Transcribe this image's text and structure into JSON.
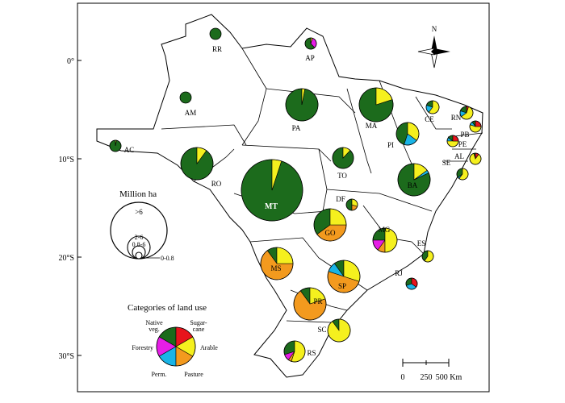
{
  "map": {
    "lat_labels": [
      "0°",
      "10°S",
      "20°S",
      "30°S"
    ],
    "north_label": "N",
    "scale_bar": {
      "labels": [
        "0",
        "250",
        "500 Km"
      ]
    },
    "size_legend": {
      "title": "Million ha",
      "classes": [
        ">6",
        "2-6",
        "0.8-6",
        "0-0.8"
      ]
    },
    "category_legend": {
      "title": "Categories of land use",
      "labels": [
        "Native veg.",
        "Sugar-cane",
        "Arable",
        "Pasture",
        "Perm.",
        "Forestry"
      ]
    },
    "colors": {
      "native_veg": "#1c6b1c",
      "sugarcane": "#e8141c",
      "arable": "#f5f01e",
      "pasture": "#f39a1e",
      "perm": "#19b4e6",
      "forestry": "#e61ee6"
    },
    "states": [
      {
        "code": "RR",
        "shares": {
          "native": 1.0
        }
      },
      {
        "code": "AP",
        "shares": {
          "native": 0.62,
          "forestry": 0.33,
          "arable": 0.05
        }
      },
      {
        "code": "AM",
        "shares": {
          "native": 1.0
        }
      },
      {
        "code": "PA",
        "shares": {
          "native": 0.97,
          "arable": 0.03
        }
      },
      {
        "code": "AC",
        "shares": {
          "native": 0.97,
          "arable": 0.03
        }
      },
      {
        "code": "MA",
        "shares": {
          "native": 0.8,
          "arable": 0.2
        }
      },
      {
        "code": "CE",
        "shares": {
          "native": 0.2,
          "perm": 0.2,
          "arable": 0.6
        }
      },
      {
        "code": "RN",
        "shares": {
          "native": 0.2,
          "sugarcane": 0.05,
          "perm": 0.15,
          "arable": 0.6
        }
      },
      {
        "code": "PI",
        "shares": {
          "native": 0.45,
          "arable": 0.35,
          "perm": 0.2
        }
      },
      {
        "code": "PB",
        "shares": {
          "native": 0.1,
          "sugarcane": 0.25,
          "perm": 0.1,
          "arable": 0.55
        }
      },
      {
        "code": "PE",
        "shares": {
          "native": 0.15,
          "sugarcane": 0.25,
          "perm": 0.1,
          "arable": 0.5
        }
      },
      {
        "code": "AL",
        "shares": {
          "native": 0.05,
          "sugarcane": 0.1,
          "arable": 0.85
        }
      },
      {
        "code": "SE",
        "shares": {
          "native": 0.35,
          "arable": 0.6,
          "perm": 0.05
        }
      },
      {
        "code": "RO",
        "shares": {
          "native": 0.9,
          "arable": 0.1
        }
      },
      {
        "code": "TO",
        "shares": {
          "native": 0.88,
          "arable": 0.12
        }
      },
      {
        "code": "BA",
        "shares": {
          "native": 0.82,
          "arable": 0.15,
          "perm": 0.03
        }
      },
      {
        "code": "MT",
        "shares": {
          "native": 0.95,
          "arable": 0.05
        }
      },
      {
        "code": "DF",
        "shares": {
          "native": 0.5,
          "arable": 0.3,
          "pasture": 0.2
        }
      },
      {
        "code": "GO",
        "shares": {
          "native": 0.35,
          "arable": 0.25,
          "pasture": 0.4
        }
      },
      {
        "code": "MG",
        "shares": {
          "native": 0.25,
          "forestry": 0.15,
          "pasture": 0.1,
          "arable": 0.5
        }
      },
      {
        "code": "ES",
        "shares": {
          "native": 0.4,
          "arable": 0.6
        }
      },
      {
        "code": "MS",
        "shares": {
          "native": 0.1,
          "arable": 0.25,
          "pasture": 0.65
        }
      },
      {
        "code": "SP",
        "shares": {
          "native": 0.1,
          "perm": 0.1,
          "arable": 0.3,
          "pasture": 0.5
        }
      },
      {
        "code": "RJ",
        "shares": {
          "native": 0.3,
          "sugarcane": 0.35,
          "perm": 0.35
        }
      },
      {
        "code": "PR",
        "shares": {
          "native": 0.1,
          "arable": 0.2,
          "pasture": 0.7
        }
      },
      {
        "code": "SC",
        "shares": {
          "native": 0.1,
          "arable": 0.9
        }
      },
      {
        "code": "RS",
        "shares": {
          "native": 0.3,
          "forestry": 0.1,
          "pasture": 0.05,
          "arable": 0.55
        }
      }
    ]
  }
}
